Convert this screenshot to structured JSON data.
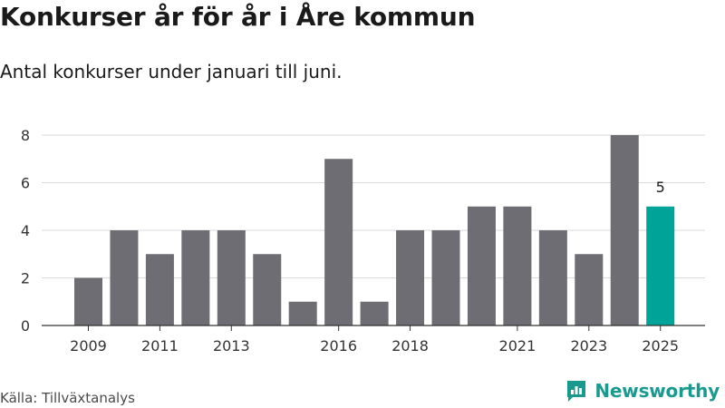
{
  "header": {
    "title": "Konkurser år för år i Åre kommun",
    "subtitle": "Antal konkurser under januari till juni."
  },
  "footer": {
    "source": "Källa: Tillväxtanalys",
    "brand": "Newsworthy"
  },
  "colors": {
    "bar": "#6e6d73",
    "highlight": "#00a398",
    "grid": "#d9d9d9",
    "axis": "#333333",
    "brand": "#1a9a8e"
  },
  "chart_data": {
    "type": "bar",
    "title": "Konkurser år för år i Åre kommun",
    "subtitle": "Antal konkurser under januari till juni.",
    "xlabel": "",
    "ylabel": "",
    "categories": [
      "2009",
      "2010",
      "2011",
      "2012",
      "2013",
      "2014",
      "2015",
      "2016",
      "2017",
      "2018",
      "2019",
      "2020",
      "2021",
      "2022",
      "2023",
      "2024",
      "2025"
    ],
    "values": [
      2,
      4,
      3,
      4,
      4,
      3,
      1,
      7,
      1,
      4,
      4,
      5,
      5,
      4,
      3,
      8,
      5
    ],
    "highlight_category": "2025",
    "x_tick_labels": [
      "2009",
      "2011",
      "2013",
      "2016",
      "2018",
      "2021",
      "2023",
      "2025"
    ],
    "y_ticks": [
      0,
      2,
      4,
      6,
      8
    ],
    "ylim": [
      0,
      8
    ],
    "annotations": [
      {
        "category": "2025",
        "text": "5"
      }
    ],
    "grid": true,
    "legend": "none"
  }
}
